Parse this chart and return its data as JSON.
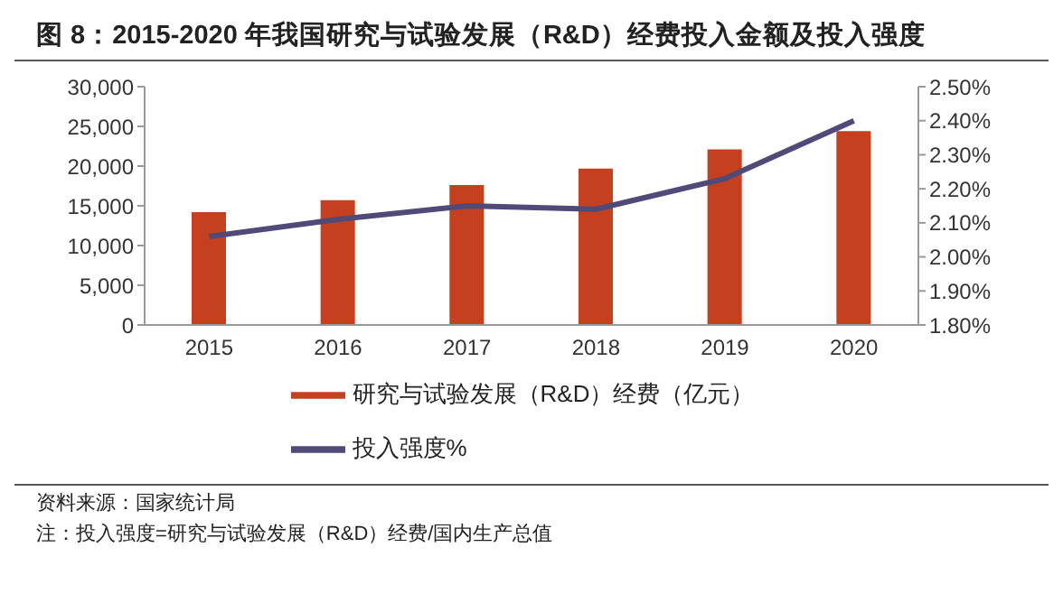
{
  "chart_data": {
    "type": "bar",
    "title": "图 8：2015-2020 年我国研究与试验发展（R&D）经费投入金额及投入强度",
    "categories": [
      "2015",
      "2016",
      "2017",
      "2018",
      "2019",
      "2020"
    ],
    "series": [
      {
        "name": "研究与试验发展（R&D）经费（亿元）",
        "color": "#c5401f",
        "values": [
          14200,
          15700,
          17600,
          19700,
          22100,
          24400
        ]
      },
      {
        "name": "投入强度%",
        "type": "line",
        "axis": "y2",
        "color": "#4f4a78",
        "values": [
          2.06,
          2.11,
          2.15,
          2.14,
          2.23,
          2.4
        ]
      }
    ],
    "ylim": [
      0,
      30000
    ],
    "yticks": [
      0,
      {
        "value": 5000,
        "label": "5,000"
      },
      {
        "value": 10000,
        "label": "10,000"
      },
      {
        "value": 15000,
        "label": "15,000"
      },
      {
        "value": 20000,
        "label": "20,000"
      },
      {
        "value": 25000,
        "label": "25,000"
      },
      {
        "value": 30000,
        "label": "30,000"
      }
    ],
    "y2lim": [
      1.8,
      2.5
    ],
    "y2ticks": [
      {
        "value": 1.8,
        "label": "1.80%"
      },
      {
        "value": 1.9,
        "label": "1.90%"
      },
      {
        "value": 2.0,
        "label": "2.00%"
      },
      {
        "value": 2.1,
        "label": "2.10%"
      },
      {
        "value": 2.2,
        "label": "2.20%"
      },
      {
        "value": 2.3,
        "label": "2.30%"
      },
      {
        "value": 2.4,
        "label": "2.40%"
      },
      {
        "value": 2.5,
        "label": "2.50%"
      }
    ],
    "grid": false,
    "legend": "bottom",
    "marker": "none",
    "line_style": "solid",
    "annotations": [
      "资料来源：国家统计局",
      "注：投入强度=研究与试验发展（R&D）经费/国内生产总值"
    ]
  }
}
